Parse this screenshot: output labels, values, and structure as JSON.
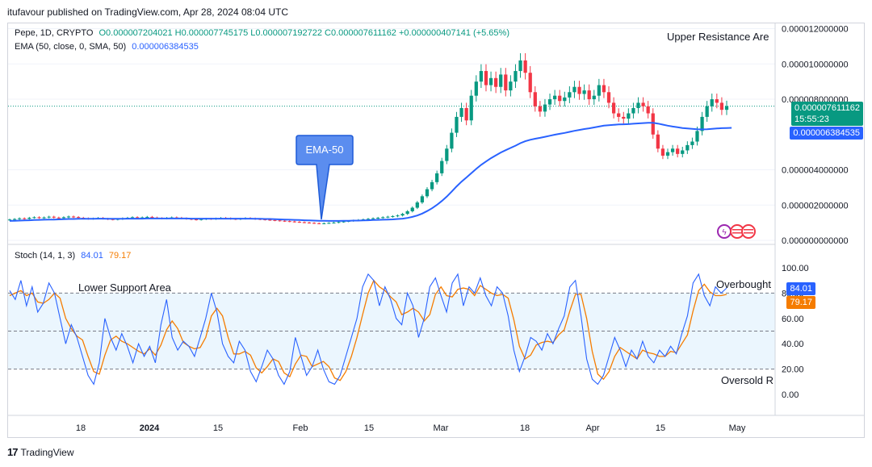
{
  "header": {
    "publisher_line": "itufavour published on TradingView.com, Apr 28, 2024 08:04 UTC"
  },
  "main_legend": {
    "symbol": "Pepe, 1D, CRYPTO",
    "ohlc": "O0.000007204021 H0.000007745175 L0.000007192722 C0.000007611162 +0.000000407141 (+5.65%)",
    "ema_label": "EMA (50, close, 0, SMA, 50)",
    "ema_value": "0.000006384535"
  },
  "stoch_legend": {
    "label": "Stoch (14, 1, 3)",
    "k_value": "84.01",
    "d_value": "79.17"
  },
  "annotations": {
    "upper_resistance": "Upper Resistance Are",
    "ema_callout": "EMA-50",
    "lower_support": "Lower Support Area",
    "overbought": "Overbought",
    "oversold": "Oversold R"
  },
  "price_tags": {
    "last_price": "0.000007611162",
    "countdown": "15:55:23",
    "ema_price": "0.000006384535",
    "stoch_k": "84.01",
    "stoch_d": "79.17"
  },
  "colors": {
    "up": "#089981",
    "down": "#f23645",
    "ema": "#2962ff",
    "stoch_k": "#2962ff",
    "stoch_d": "#f57c00",
    "band": "#e3f2fd"
  },
  "footer": {
    "brand": "TradingView",
    "logo": "17"
  },
  "chart_data": [
    {
      "type": "candlestick",
      "title": "Pepe, 1D, CRYPTO",
      "y_ticks": [
        "0.000012000000",
        "0.000010000000",
        "0.000008000000",
        "0.000004000000",
        "0.000002000000",
        "0.000000000000"
      ],
      "x_ticks": [
        "18",
        "2024",
        "15",
        "Feb",
        "15",
        "Mar",
        "18",
        "Apr",
        "15",
        "May"
      ],
      "ylim": [
        0,
        1.23e-05
      ],
      "grid": true,
      "candles_close": [
        1.18e-06,
        1.21e-06,
        1.25e-06,
        1.22e-06,
        1.28e-06,
        1.31e-06,
        1.27e-06,
        1.3e-06,
        1.34e-06,
        1.29e-06,
        1.26e-06,
        1.31e-06,
        1.35e-06,
        1.32e-06,
        1.28e-06,
        1.25e-06,
        1.22e-06,
        1.24e-06,
        1.27e-06,
        1.23e-06,
        1.2e-06,
        1.18e-06,
        1.21e-06,
        1.25e-06,
        1.28e-06,
        1.31e-06,
        1.27e-06,
        1.3e-06,
        1.33e-06,
        1.29e-06,
        1.26e-06,
        1.24e-06,
        1.27e-06,
        1.3e-06,
        1.28e-06,
        1.25e-06,
        1.22e-06,
        1.19e-06,
        1.17e-06,
        1.2e-06,
        1.23e-06,
        1.21e-06,
        1.24e-06,
        1.27e-06,
        1.25e-06,
        1.22e-06,
        1.2e-06,
        1.23e-06,
        1.26e-06,
        1.24e-06,
        1.21e-06,
        1.19e-06,
        1.17e-06,
        1.15e-06,
        1.13e-06,
        1.11e-06,
        1.09e-06,
        1.07e-06,
        1.05e-06,
        1.03e-06,
        1.01e-06,
        9.9e-07,
        9.7e-07,
        9.5e-07,
        9.7e-07,
        9.9e-07,
        1.01e-06,
        1.04e-06,
        1.07e-06,
        1.1e-06,
        1.13e-06,
        1.16e-06,
        1.19e-06,
        1.22e-06,
        1.25e-06,
        1.28e-06,
        1.31e-06,
        1.34e-06,
        1.37e-06,
        1.41e-06,
        1.5e-06,
        1.65e-06,
        1.85e-06,
        2.15e-06,
        2.5e-06,
        2.9e-06,
        3.3e-06,
        3.8e-06,
        4.5e-06,
        5.2e-06,
        6.1e-06,
        7e-06,
        7.5e-06,
        6.8e-06,
        8.2e-06,
        9e-06,
        9.6e-06,
        8.8e-06,
        9.2e-06,
        8.7e-06,
        9.4e-06,
        8.5e-06,
        9e-06,
        9.6e-06,
        1.02e-05,
        9.5e-06,
        8.4e-06,
        7.6e-06,
        7.3e-06,
        7.7e-06,
        8e-06,
        8.2e-06,
        7.9e-06,
        8.1e-06,
        8.4e-06,
        8.7e-06,
        8.3e-06,
        8.5e-06,
        8e-06,
        8.2e-06,
        8.8e-06,
        8.4e-06,
        7.8e-06,
        7.2e-06,
        7e-06,
        6.9e-06,
        7.2e-06,
        7.5e-06,
        7.8e-06,
        7.6e-06,
        7.2e-06,
        6e-06,
        5.2e-06,
        4.8e-06,
        5e-06,
        5.2e-06,
        4.9e-06,
        5.1e-06,
        5.4e-06,
        5.6e-06,
        6.2e-06,
        7e-06,
        7.6e-06,
        8e-06,
        7.8e-06,
        7.4e-06,
        7.61e-06
      ],
      "ema_50": [
        1.1e-06,
        1.11e-06,
        1.12e-06,
        1.13e-06,
        1.14e-06,
        1.15e-06,
        1.16e-06,
        1.17e-06,
        1.18e-06,
        1.18e-06,
        1.19e-06,
        1.2e-06,
        1.21e-06,
        1.21e-06,
        1.22e-06,
        1.22e-06,
        1.22e-06,
        1.22e-06,
        1.23e-06,
        1.23e-06,
        1.22e-06,
        1.22e-06,
        1.22e-06,
        1.22e-06,
        1.23e-06,
        1.23e-06,
        1.23e-06,
        1.23e-06,
        1.24e-06,
        1.24e-06,
        1.24e-06,
        1.24e-06,
        1.24e-06,
        1.24e-06,
        1.24e-06,
        1.24e-06,
        1.24e-06,
        1.23e-06,
        1.23e-06,
        1.23e-06,
        1.23e-06,
        1.23e-06,
        1.23e-06,
        1.23e-06,
        1.23e-06,
        1.23e-06,
        1.23e-06,
        1.23e-06,
        1.23e-06,
        1.23e-06,
        1.22e-06,
        1.22e-06,
        1.21e-06,
        1.21e-06,
        1.2e-06,
        1.19e-06,
        1.18e-06,
        1.17e-06,
        1.16e-06,
        1.15e-06,
        1.14e-06,
        1.13e-06,
        1.12e-06,
        1.11e-06,
        1.11e-06,
        1.1e-06,
        1.1e-06,
        1.1e-06,
        1.11e-06,
        1.11e-06,
        1.12e-06,
        1.12e-06,
        1.13e-06,
        1.14e-06,
        1.15e-06,
        1.16e-06,
        1.17e-06,
        1.18e-06,
        1.19e-06,
        1.21e-06,
        1.23e-06,
        1.27e-06,
        1.33e-06,
        1.41e-06,
        1.52e-06,
        1.66e-06,
        1.82e-06,
        2.01e-06,
        2.23e-06,
        2.48e-06,
        2.76e-06,
        3.06e-06,
        3.33e-06,
        3.56e-06,
        3.81e-06,
        4.05e-06,
        4.28e-06,
        4.47e-06,
        4.66e-06,
        4.82e-06,
        4.98e-06,
        5.11e-06,
        5.24e-06,
        5.37e-06,
        5.51e-06,
        5.62e-06,
        5.7e-06,
        5.76e-06,
        5.81e-06,
        5.87e-06,
        5.93e-06,
        5.99e-06,
        6.04e-06,
        6.09e-06,
        6.15e-06,
        6.21e-06,
        6.26e-06,
        6.31e-06,
        6.35e-06,
        6.4e-06,
        6.45e-06,
        6.5e-06,
        6.53e-06,
        6.55e-06,
        6.57e-06,
        6.58e-06,
        6.59e-06,
        6.61e-06,
        6.63e-06,
        6.65e-06,
        6.66e-06,
        6.66e-06,
        6.62e-06,
        6.56e-06,
        6.5e-06,
        6.45e-06,
        6.41e-06,
        6.37e-06,
        6.34e-06,
        6.32e-06,
        6.3e-06,
        6.29e-06,
        6.3e-06,
        6.32e-06,
        6.34e-06,
        6.36e-06,
        6.37e-06,
        6.38e-06
      ]
    },
    {
      "type": "line",
      "title": "Stoch (14, 1, 3)",
      "y_ticks": [
        "100.00",
        "80.00",
        "60.00",
        "40.00",
        "20.00",
        "0.00"
      ],
      "ylim": [
        0,
        100
      ],
      "reference_lines": [
        80,
        50,
        20
      ],
      "series": [
        {
          "name": "%K",
          "values": [
            82,
            75,
            90,
            70,
            85,
            65,
            72,
            88,
            80,
            60,
            40,
            55,
            45,
            30,
            15,
            8,
            25,
            60,
            45,
            35,
            48,
            38,
            25,
            40,
            30,
            38,
            25,
            55,
            75,
            45,
            35,
            42,
            38,
            30,
            45,
            60,
            80,
            65,
            40,
            30,
            25,
            42,
            35,
            18,
            10,
            22,
            35,
            28,
            15,
            8,
            18,
            45,
            30,
            15,
            22,
            35,
            20,
            10,
            8,
            15,
            30,
            45,
            60,
            85,
            95,
            90,
            70,
            85,
            75,
            60,
            55,
            80,
            70,
            45,
            60,
            85,
            92,
            78,
            65,
            88,
            95,
            70,
            85,
            80,
            92,
            78,
            70,
            85,
            80,
            62,
            35,
            18,
            30,
            45,
            42,
            35,
            48,
            40,
            52,
            62,
            85,
            90,
            62,
            28,
            12,
            8,
            15,
            30,
            45,
            35,
            22,
            35,
            28,
            42,
            30,
            25,
            35,
            30,
            38,
            32,
            48,
            62,
            88,
            95,
            78,
            70,
            85,
            80,
            84
          ]
        },
        {
          "name": "%D",
          "values": [
            78,
            80,
            82,
            78,
            80,
            73,
            72,
            75,
            80,
            76,
            60,
            52,
            46,
            43,
            30,
            18,
            16,
            31,
            43,
            46,
            42,
            40,
            37,
            34,
            32,
            36,
            31,
            39,
            51,
            58,
            52,
            41,
            38,
            36,
            37,
            45,
            62,
            68,
            62,
            45,
            32,
            32,
            34,
            31,
            21,
            17,
            22,
            28,
            26,
            17,
            14,
            24,
            31,
            30,
            22,
            24,
            26,
            22,
            13,
            11,
            18,
            30,
            45,
            63,
            80,
            90,
            85,
            82,
            77,
            73,
            63,
            65,
            68,
            65,
            58,
            63,
            79,
            85,
            78,
            77,
            83,
            84,
            83,
            78,
            86,
            83,
            80,
            78,
            79,
            76,
            59,
            38,
            28,
            31,
            39,
            41,
            42,
            41,
            47,
            51,
            66,
            79,
            79,
            60,
            34,
            16,
            12,
            18,
            30,
            37,
            34,
            31,
            28,
            35,
            33,
            32,
            30,
            30,
            34,
            33,
            40,
            47,
            66,
            82,
            87,
            81,
            78,
            78,
            79
          ]
        }
      ]
    }
  ]
}
